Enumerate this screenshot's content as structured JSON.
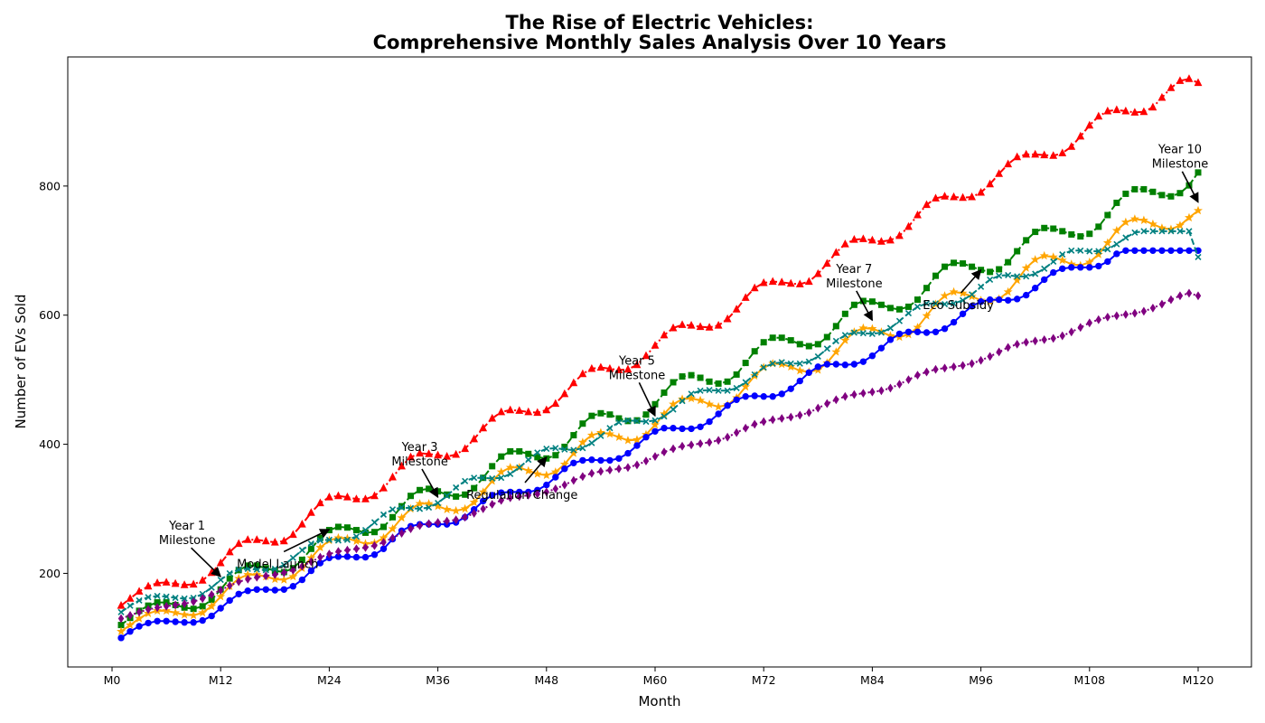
{
  "chart_data": {
    "type": "line",
    "title_lines": [
      "The Rise of Electric Vehicles:",
      "Comprehensive Monthly Sales Analysis Over 10 Years"
    ],
    "xlabel": "Month",
    "ylabel": "Number of EVs Sold",
    "xlim": [
      0,
      120
    ],
    "ylim": [
      55,
      1000
    ],
    "x_ticks": [
      0,
      12,
      24,
      36,
      48,
      60,
      72,
      84,
      96,
      108,
      120
    ],
    "x_tick_labels": [
      "M0",
      "M12",
      "M24",
      "M36",
      "M48",
      "M60",
      "M72",
      "M84",
      "M96",
      "M108",
      "M120"
    ],
    "y_ticks": [
      200,
      400,
      600,
      800
    ],
    "y_tick_labels": [
      "200",
      "400",
      "600",
      "800"
    ],
    "grid": false,
    "legend": "none",
    "x": [
      1,
      2,
      3,
      4,
      5,
      6,
      7,
      8,
      9,
      10,
      11,
      12,
      13,
      14,
      15,
      16,
      17,
      18,
      19,
      20,
      21,
      22,
      23,
      24,
      25,
      26,
      27,
      28,
      29,
      30,
      31,
      32,
      33,
      34,
      35,
      36,
      37,
      38,
      39,
      40,
      41,
      42,
      43,
      44,
      45,
      46,
      47,
      48,
      49,
      50,
      51,
      52,
      53,
      54,
      55,
      56,
      57,
      58,
      59,
      60,
      61,
      62,
      63,
      64,
      65,
      66,
      67,
      68,
      69,
      70,
      71,
      72,
      73,
      74,
      75,
      76,
      77,
      78,
      79,
      80,
      81,
      82,
      83,
      84,
      85,
      86,
      87,
      88,
      89,
      90,
      91,
      92,
      93,
      94,
      95,
      96,
      97,
      98,
      99,
      100,
      101,
      102,
      103,
      104,
      105,
      106,
      107,
      108,
      109,
      110,
      111,
      112,
      113,
      114,
      115,
      116,
      117,
      118,
      119,
      120
    ],
    "series": [
      {
        "color": "#ff0000",
        "marker": "triangle",
        "line": "dashdot",
        "values": [
          150,
          161,
          172,
          180,
          185,
          186,
          184,
          182,
          183,
          189,
          201,
          216,
          233,
          246,
          252,
          252,
          250,
          248,
          250,
          260,
          276,
          294,
          309,
          318,
          320,
          318,
          315,
          315,
          320,
          332,
          349,
          366,
          380,
          386,
          385,
          383,
          381,
          384,
          393,
          408,
          425,
          440,
          450,
          453,
          452,
          450,
          449,
          453,
          463,
          478,
          495,
          509,
          517,
          519,
          517,
          515,
          516,
          523,
          537,
          553,
          569,
          580,
          585,
          584,
          582,
          581,
          584,
          594,
          609,
          627,
          642,
          650,
          652,
          651,
          649,
          648,
          652,
          664,
          680,
          697,
          710,
          717,
          718,
          716,
          714,
          716,
          723,
          737,
          755,
          771,
          781,
          784,
          783,
          782,
          783,
          790,
          803,
          819,
          834,
          845,
          849,
          849,
          848,
          847,
          851,
          861,
          877,
          894,
          908,
          916,
          918,
          916,
          914,
          915,
          922,
          937,
          952,
          963,
          966,
          960
        ]
      },
      {
        "color": "#008000",
        "marker": "square",
        "line": "dashed",
        "values": [
          120,
          131,
          142,
          150,
          155,
          155,
          151,
          147,
          145,
          149,
          159,
          175,
          192,
          205,
          212,
          212,
          208,
          204,
          202,
          208,
          221,
          238,
          255,
          267,
          272,
          271,
          267,
          263,
          264,
          272,
          287,
          304,
          320,
          329,
          331,
          327,
          322,
          319,
          322,
          332,
          348,
          366,
          381,
          389,
          389,
          385,
          380,
          378,
          383,
          396,
          414,
          432,
          444,
          448,
          446,
          440,
          436,
          437,
          446,
          462,
          480,
          496,
          505,
          507,
          503,
          497,
          494,
          497,
          508,
          526,
          544,
          558,
          565,
          565,
          561,
          555,
          552,
          555,
          566,
          583,
          602,
          616,
          622,
          621,
          616,
          611,
          609,
          613,
          624,
          642,
          661,
          675,
          681,
          680,
          675,
          670,
          667,
          671,
          682,
          699,
          716,
          729,
          735,
          734,
          730,
          725,
          722,
          726,
          737,
          755,
          774,
          788,
          795,
          795,
          791,
          786,
          784,
          789,
          801,
          821
        ]
      },
      {
        "color": "#ffa500",
        "marker": "star",
        "line": "solid",
        "values": [
          110,
          120,
          130,
          138,
          142,
          142,
          139,
          136,
          135,
          139,
          149,
          164,
          180,
          192,
          198,
          198,
          195,
          191,
          190,
          195,
          208,
          224,
          240,
          251,
          255,
          254,
          250,
          246,
          247,
          255,
          269,
          286,
          300,
          308,
          308,
          304,
          299,
          297,
          300,
          310,
          326,
          343,
          357,
          364,
          364,
          359,
          354,
          352,
          357,
          369,
          386,
          403,
          414,
          418,
          416,
          411,
          406,
          407,
          415,
          430,
          447,
          462,
          470,
          471,
          468,
          462,
          458,
          461,
          472,
          489,
          506,
          519,
          525,
          524,
          520,
          514,
          512,
          515,
          526,
          543,
          561,
          574,
          580,
          579,
          574,
          568,
          566,
          570,
          581,
          599,
          617,
          630,
          636,
          634,
          629,
          623,
          621,
          625,
          636,
          654,
          673,
          686,
          692,
          690,
          685,
          679,
          677,
          682,
          694,
          712,
          731,
          744,
          749,
          747,
          741,
          735,
          733,
          739,
          751,
          762
        ]
      },
      {
        "color": "#0000ff",
        "marker": "circle",
        "line": "solid",
        "values": [
          100,
          110,
          118,
          123,
          126,
          126,
          125,
          124,
          124,
          127,
          134,
          146,
          158,
          168,
          173,
          175,
          175,
          174,
          175,
          180,
          190,
          204,
          216,
          224,
          226,
          226,
          225,
          225,
          229,
          238,
          253,
          266,
          273,
          276,
          276,
          276,
          276,
          279,
          287,
          299,
          312,
          321,
          325,
          326,
          326,
          326,
          329,
          337,
          349,
          362,
          371,
          375,
          376,
          375,
          375,
          378,
          386,
          398,
          411,
          420,
          425,
          425,
          424,
          424,
          427,
          435,
          447,
          460,
          469,
          474,
          475,
          474,
          474,
          478,
          486,
          498,
          511,
          520,
          524,
          524,
          523,
          524,
          528,
          537,
          549,
          562,
          571,
          574,
          574,
          573,
          574,
          579,
          589,
          602,
          614,
          621,
          624,
          624,
          623,
          625,
          631,
          642,
          655,
          666,
          672,
          674,
          674,
          674,
          676,
          683,
          695,
          700,
          700,
          700,
          700,
          700,
          700,
          700,
          700,
          700
        ]
      },
      {
        "color": "#008080",
        "marker": "x",
        "line": "dashed",
        "values": [
          140,
          150,
          158,
          163,
          165,
          164,
          162,
          161,
          162,
          168,
          178,
          190,
          200,
          206,
          207,
          206,
          205,
          207,
          213,
          224,
          236,
          246,
          251,
          252,
          251,
          252,
          257,
          267,
          279,
          291,
          299,
          302,
          301,
          300,
          302,
          309,
          320,
          333,
          343,
          348,
          348,
          347,
          348,
          354,
          364,
          376,
          387,
          393,
          394,
          392,
          391,
          394,
          402,
          413,
          425,
          434,
          437,
          436,
          435,
          437,
          443,
          454,
          467,
          478,
          483,
          484,
          483,
          483,
          487,
          496,
          508,
          519,
          525,
          527,
          525,
          525,
          528,
          536,
          548,
          560,
          569,
          573,
          572,
          571,
          573,
          580,
          591,
          603,
          613,
          618,
          618,
          617,
          618,
          623,
          632,
          644,
          655,
          661,
          662,
          660,
          660,
          664,
          672,
          683,
          694,
          700,
          700,
          699,
          699,
          702,
          710,
          720,
          728,
          730,
          730,
          730,
          730,
          730,
          730,
          690
        ]
      },
      {
        "color": "#800080",
        "marker": "diamond",
        "line": "dotted",
        "values": [
          130,
          135,
          140,
          144,
          147,
          149,
          151,
          153,
          156,
          161,
          167,
          174,
          181,
          187,
          191,
          194,
          196,
          198,
          201,
          205,
          211,
          218,
          225,
          230,
          234,
          236,
          238,
          240,
          243,
          248,
          255,
          262,
          269,
          274,
          277,
          279,
          281,
          283,
          287,
          293,
          300,
          307,
          313,
          317,
          319,
          321,
          323,
          326,
          331,
          337,
          344,
          350,
          355,
          358,
          360,
          362,
          364,
          368,
          374,
          381,
          388,
          393,
          397,
          399,
          401,
          403,
          406,
          411,
          418,
          425,
          431,
          435,
          438,
          440,
          442,
          445,
          449,
          456,
          463,
          469,
          474,
          477,
          479,
          481,
          483,
          487,
          493,
          500,
          507,
          512,
          516,
          518,
          520,
          522,
          525,
          530,
          536,
          543,
          550,
          555,
          558,
          560,
          562,
          564,
          568,
          574,
          581,
          588,
          593,
          597,
          599,
          601,
          603,
          606,
          611,
          617,
          624,
          630,
          634,
          630
        ]
      }
    ],
    "annotations": [
      {
        "label_lines": [
          "Year 1",
          "Milestone"
        ],
        "x": 12,
        "y": 195,
        "text_x": 8.3,
        "text_y": 262
      },
      {
        "label_lines": [
          "Model Launch"
        ],
        "x": 24,
        "y": 268,
        "text_x": 18.3,
        "text_y": 214
      },
      {
        "label_lines": [
          "Year 3",
          "Milestone"
        ],
        "x": 36,
        "y": 318,
        "text_x": 34,
        "text_y": 384
      },
      {
        "label_lines": [
          "Regulation Change"
        ],
        "x": 48,
        "y": 380,
        "text_x": 45.3,
        "text_y": 321
      },
      {
        "label_lines": [
          "Year 5",
          "Milestone"
        ],
        "x": 60,
        "y": 444,
        "text_x": 58,
        "text_y": 518
      },
      {
        "label_lines": [
          "Year 7",
          "Milestone"
        ],
        "x": 84,
        "y": 592,
        "text_x": 82,
        "text_y": 660
      },
      {
        "label_lines": [
          "Eco Subsidy"
        ],
        "x": 96,
        "y": 670,
        "text_x": 93.5,
        "text_y": 615
      },
      {
        "label_lines": [
          "Year 10",
          "Milestone"
        ],
        "x": 120,
        "y": 775,
        "text_x": 118,
        "text_y": 845
      }
    ]
  }
}
